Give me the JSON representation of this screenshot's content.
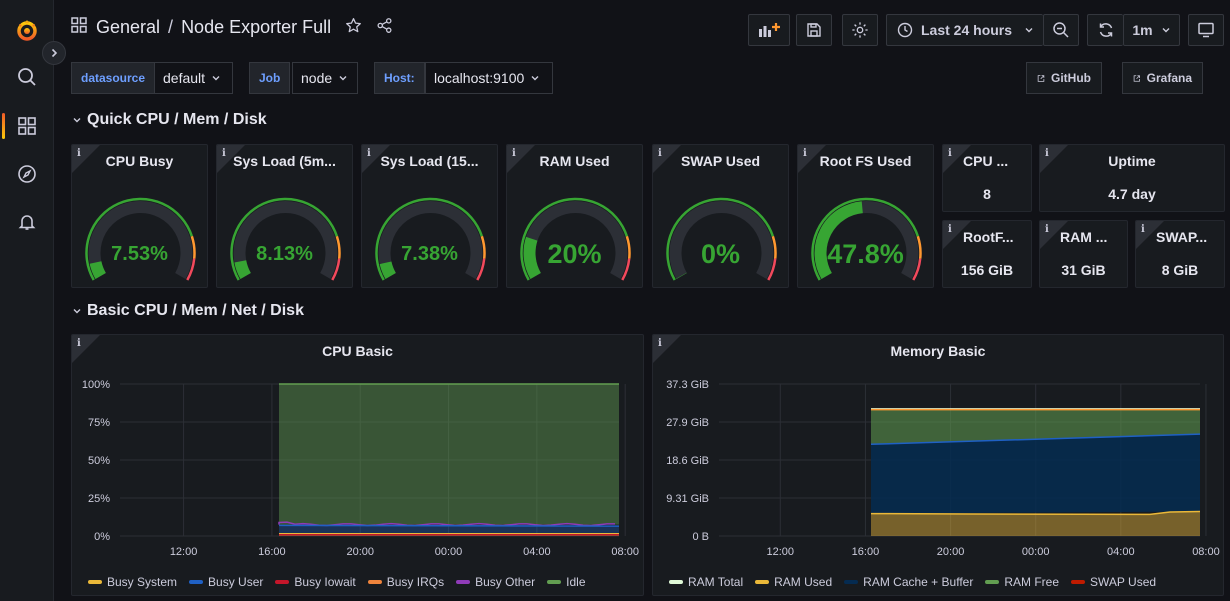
{
  "topbar": {
    "breadcrumb_folder": "General",
    "breadcrumb_sep": "/",
    "breadcrumb_dashboard": "Node Exporter Full",
    "time_range": "Last 24 hours",
    "refresh_interval": "1m"
  },
  "variables": [
    {
      "label": "datasource",
      "value": "default"
    },
    {
      "label": "Job",
      "value": "node"
    },
    {
      "label": "Host:",
      "value": "localhost:9100"
    }
  ],
  "links": [
    {
      "label": "GitHub"
    },
    {
      "label": "Grafana"
    }
  ],
  "rows": {
    "quick": "Quick CPU / Mem / Disk",
    "basic": "Basic CPU / Mem / Net / Disk"
  },
  "gauges": [
    {
      "title": "CPU Busy",
      "display": "7.53%",
      "value": 7.53,
      "color": "#37a533"
    },
    {
      "title": "Sys Load (5m...",
      "display": "8.13%",
      "value": 8.13,
      "color": "#37a533"
    },
    {
      "title": "Sys Load (15...",
      "display": "7.38%",
      "value": 7.38,
      "color": "#37a533"
    },
    {
      "title": "RAM Used",
      "display": "20%",
      "value": 20,
      "color": "#37a533"
    },
    {
      "title": "SWAP Used",
      "display": "0%",
      "value": 0,
      "color": "#37a533"
    },
    {
      "title": "Root FS Used",
      "display": "47.8%",
      "value": 47.8,
      "color": "#37a533"
    }
  ],
  "stats": [
    {
      "title": "CPU ...",
      "value": "8"
    },
    {
      "title": "Uptime",
      "value": "4.7 day"
    },
    {
      "title": "RootF...",
      "value": "156 GiB"
    },
    {
      "title": "RAM ...",
      "value": "31 GiB"
    },
    {
      "title": "SWAP...",
      "value": "8 GiB"
    }
  ],
  "cpu_panel": {
    "title": "CPU Basic",
    "chart_data": {
      "type": "area",
      "y_ticks": [
        "100%",
        "75%",
        "50%",
        "25%",
        "0%"
      ],
      "x_ticks": [
        "12:00",
        "16:00",
        "20:00",
        "00:00",
        "04:00",
        "08:00"
      ],
      "series": [
        {
          "name": "Busy System",
          "color": "#eab839",
          "value_pct": 1.5
        },
        {
          "name": "Busy User",
          "color": "#1f60c4",
          "value_pct": 5
        },
        {
          "name": "Busy Iowait",
          "color": "#c4162a",
          "value_pct": 0.3
        },
        {
          "name": "Busy IRQs",
          "color": "#ef843c",
          "value_pct": 0.2
        },
        {
          "name": "Busy Other",
          "color": "#8f3bb8",
          "value_pct": 0.5
        },
        {
          "name": "Idle",
          "color": "#629e51",
          "value_pct": 92.5
        }
      ]
    }
  },
  "mem_panel": {
    "title": "Memory Basic",
    "chart_data": {
      "type": "area",
      "y_ticks": [
        "37.3 GiB",
        "27.9 GiB",
        "18.6 GiB",
        "9.31 GiB",
        "0 B"
      ],
      "x_ticks": [
        "12:00",
        "16:00",
        "20:00",
        "00:00",
        "04:00",
        "08:00"
      ],
      "series": [
        {
          "name": "RAM Total",
          "color": "#e0f9d7"
        },
        {
          "name": "RAM Used",
          "color": "#eab839"
        },
        {
          "name": "RAM Cache + Buffer",
          "color": "#052b51"
        },
        {
          "name": "RAM Free",
          "color": "#629e51"
        },
        {
          "name": "SWAP Used",
          "color": "#bf1b00"
        }
      ]
    }
  }
}
